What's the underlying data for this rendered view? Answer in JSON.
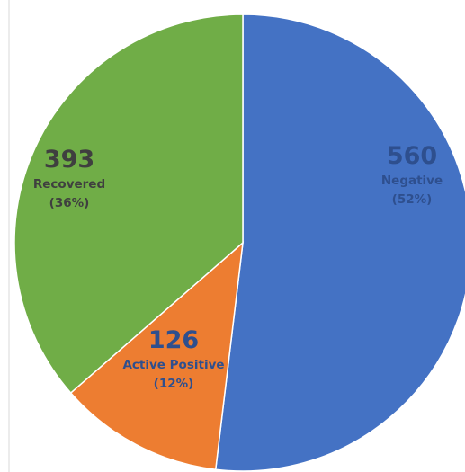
{
  "chart_data": {
    "type": "pie",
    "title": "",
    "slices": [
      {
        "label": "Negative",
        "value": 560,
        "value_text": "560",
        "percent_text": "(52%)",
        "color": "#4472C4",
        "text_color": "#2E4F8E"
      },
      {
        "label": "Active Positive",
        "value": 126,
        "value_text": "126",
        "percent_text": "(12%)",
        "color": "#ED7D31",
        "text_color": "#2E4F8E"
      },
      {
        "label": "Recovered",
        "value": 393,
        "value_text": "393",
        "percent_text": "(36%)",
        "color": "#70AD47",
        "text_color": "#3F3F3F"
      }
    ],
    "start_angle": "12 o'clock",
    "direction": "clockwise",
    "legend": "none"
  }
}
